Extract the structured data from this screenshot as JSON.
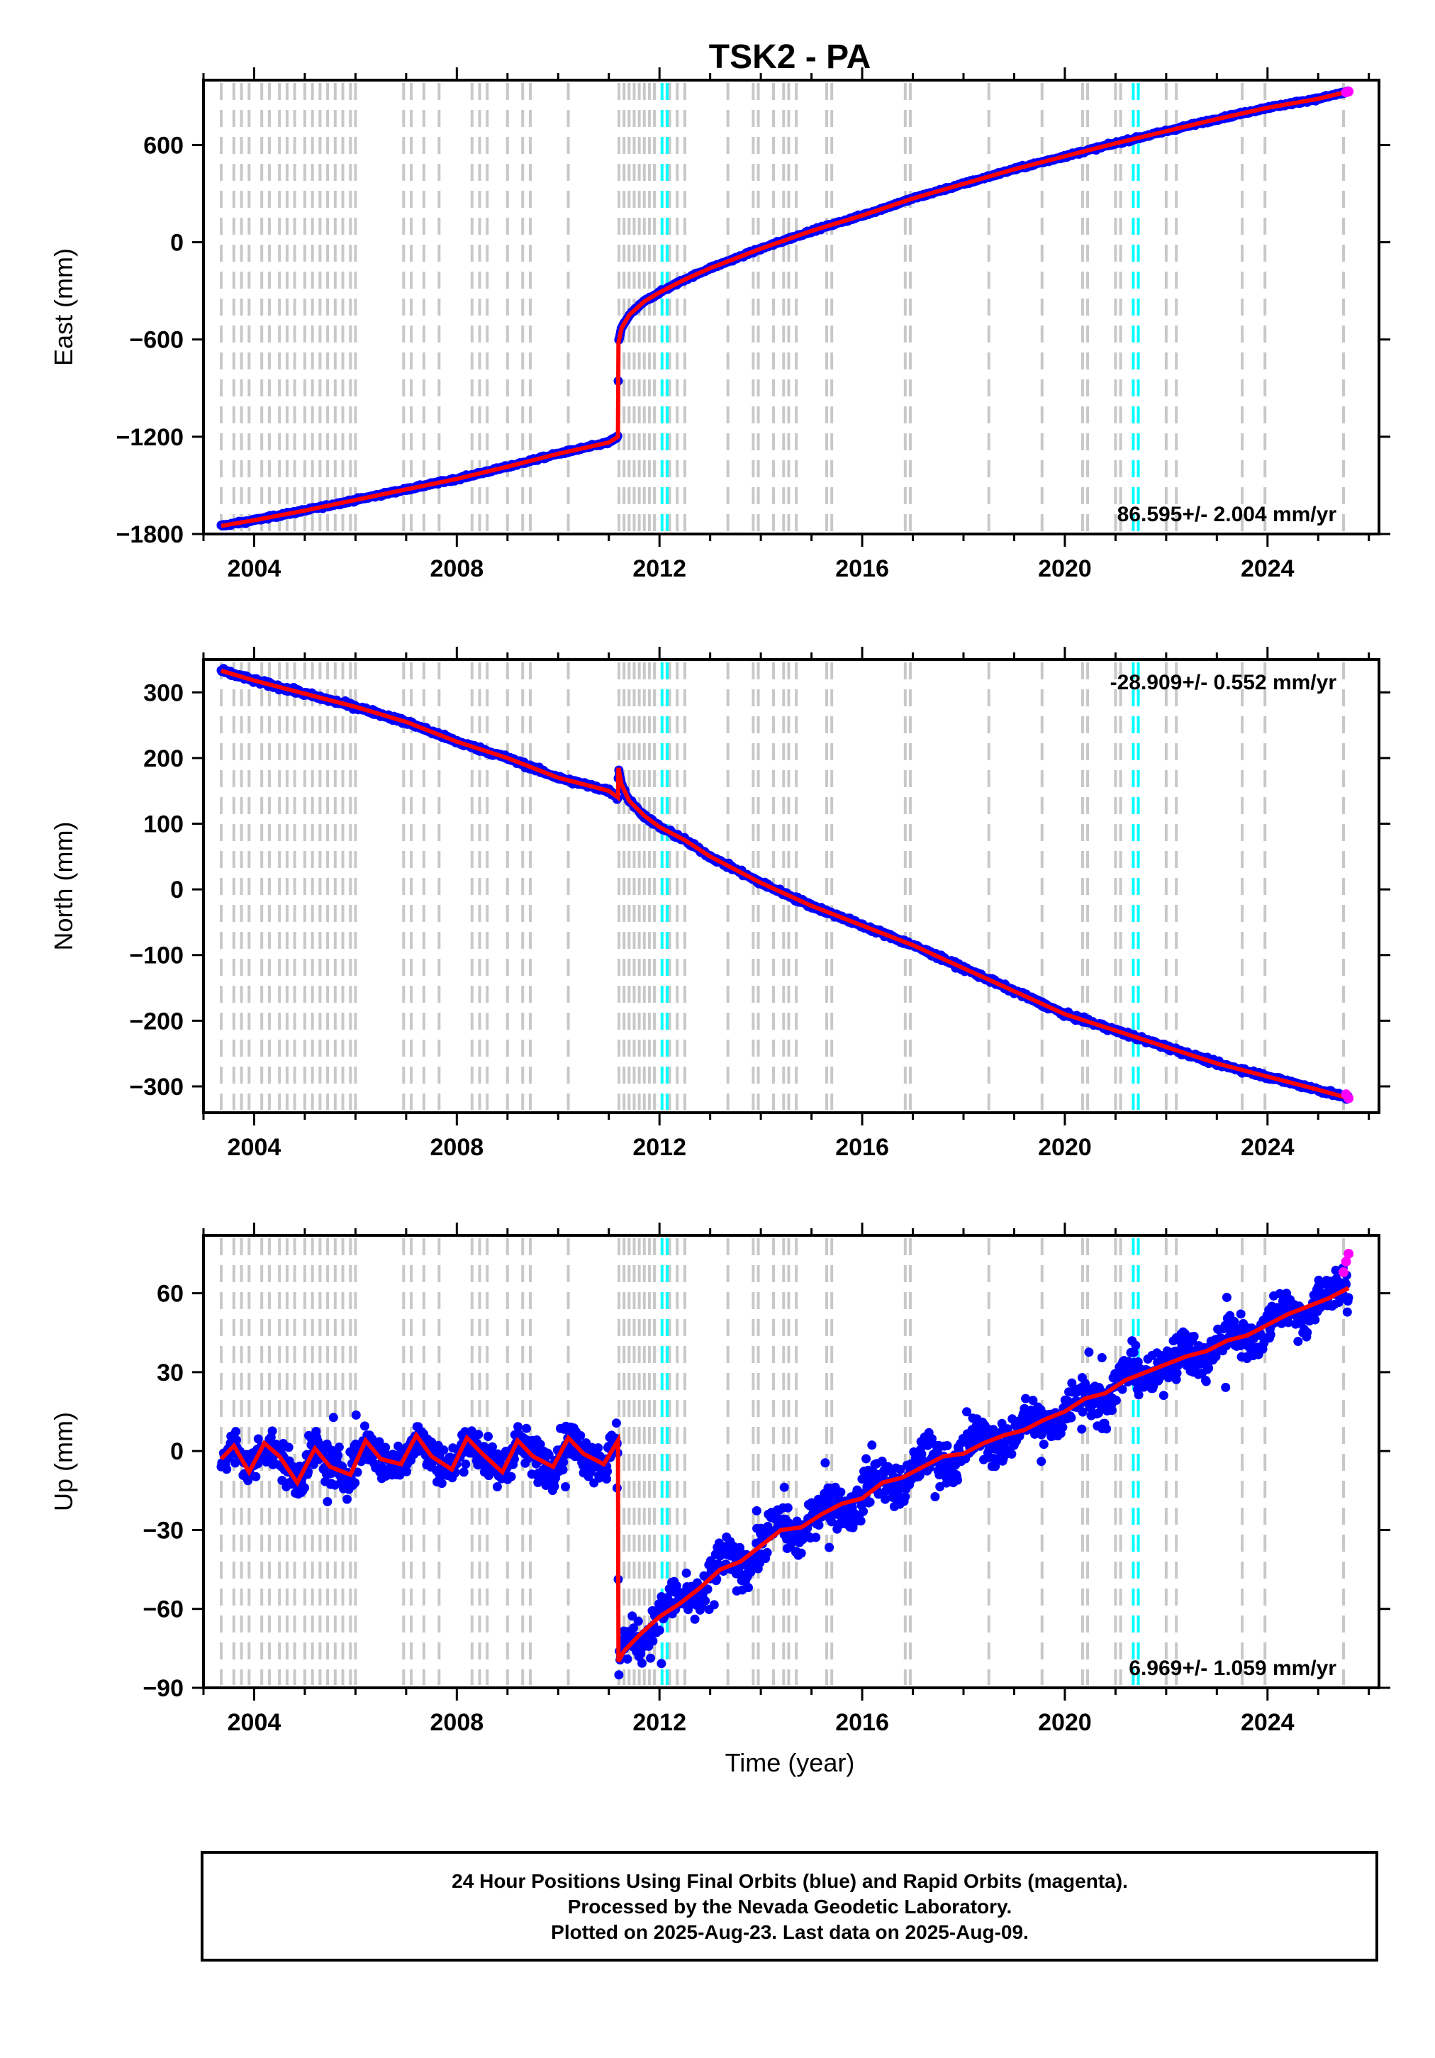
{
  "title": "TSK2 - PA",
  "x_axis_title": "Time (year)",
  "footer": {
    "lines": [
      "24 Hour Positions Using Final Orbits (blue) and Rapid Orbits (magenta).",
      "Processed by the Nevada Geodetic Laboratory.",
      "Plotted on 2025-Aug-23. Last data on 2025-Aug-09."
    ]
  },
  "colors": {
    "final_orbits": "#0000ff",
    "rapid_orbits": "#ff00ff",
    "model": "#ff0000",
    "event_line": "#c8c8c8",
    "antenna_change": "#00ffff"
  },
  "chart_data": [
    {
      "type": "scatter",
      "component": "East",
      "ylabel": "East (mm)",
      "ylim": [
        -1800,
        1000
      ],
      "yticks": [
        -1800,
        -1200,
        -600,
        0,
        600
      ],
      "xlim": [
        2003.0,
        2026.2
      ],
      "xticks": [
        2004,
        2008,
        2012,
        2016,
        2020,
        2024
      ],
      "rate_label": "86.595+/- 2.004 mm/yr",
      "rate_position": "bottom-right",
      "series": [
        {
          "x": [
            2003.35,
            2004.0,
            2005.0,
            2006.0,
            2007.0,
            2008.0,
            2009.0,
            2010.0,
            2011.0,
            2011.18,
            2011.19,
            2011.25,
            2011.4,
            2011.7,
            2012.0,
            2012.5,
            2013.0,
            2014.0,
            2015.0,
            2016.0,
            2017.0,
            2018.0,
            2019.0,
            2020.0,
            2021.0,
            2022.0,
            2023.0,
            2024.0,
            2025.0,
            2025.6
          ],
          "y": [
            -1750,
            -1715,
            -1655,
            -1590,
            -1525,
            -1460,
            -1385,
            -1305,
            -1235,
            -1200,
            -620,
            -530,
            -450,
            -365,
            -310,
            -230,
            -160,
            -40,
            70,
            165,
            270,
            360,
            450,
            530,
            610,
            685,
            760,
            830,
            885,
            930
          ]
        }
      ],
      "rapid_points": {
        "x": [
          2025.55,
          2025.6
        ],
        "y": [
          925,
          930
        ]
      }
    },
    {
      "type": "scatter",
      "component": "North",
      "ylabel": "North (mm)",
      "ylim": [
        -340,
        350
      ],
      "yticks": [
        -300,
        -200,
        -100,
        0,
        100,
        200,
        300
      ],
      "xlim": [
        2003.0,
        2026.2
      ],
      "xticks": [
        2004,
        2008,
        2012,
        2016,
        2020,
        2024
      ],
      "rate_label": "-28.909+/- 0.552 mm/yr",
      "rate_position": "top-right",
      "series": [
        {
          "x": [
            2003.35,
            2004.0,
            2005.0,
            2006.0,
            2007.0,
            2008.0,
            2009.0,
            2010.0,
            2011.0,
            2011.18,
            2011.19,
            2011.25,
            2011.4,
            2011.7,
            2012.0,
            2012.5,
            2013.0,
            2014.0,
            2015.0,
            2016.0,
            2017.0,
            2018.0,
            2019.0,
            2020.0,
            2021.0,
            2022.0,
            2023.0,
            2024.0,
            2025.0,
            2025.6
          ],
          "y": [
            333,
            318,
            298,
            278,
            255,
            225,
            200,
            170,
            150,
            140,
            185,
            160,
            135,
            112,
            95,
            75,
            50,
            10,
            -25,
            -55,
            -85,
            -120,
            -155,
            -190,
            -215,
            -240,
            -265,
            -285,
            -305,
            -318
          ]
        }
      ],
      "rapid_points": {
        "x": [
          2025.55,
          2025.6
        ],
        "y": [
          -312,
          -318
        ]
      }
    },
    {
      "type": "scatter",
      "component": "Up",
      "ylabel": "Up (mm)",
      "ylim": [
        -90,
        82
      ],
      "yticks": [
        -90,
        -60,
        -30,
        0,
        30,
        60
      ],
      "xlim": [
        2003.0,
        2026.2
      ],
      "xticks": [
        2004,
        2008,
        2012,
        2016,
        2020,
        2024
      ],
      "rate_label": "6.969+/- 1.059 mm/yr",
      "rate_position": "bottom-right",
      "series": [
        {
          "x": [
            2003.35,
            2003.6,
            2003.9,
            2004.2,
            2004.5,
            2004.85,
            2005.2,
            2005.5,
            2005.9,
            2006.2,
            2006.5,
            2006.9,
            2007.2,
            2007.5,
            2007.9,
            2008.2,
            2008.5,
            2008.9,
            2009.2,
            2009.5,
            2009.9,
            2010.2,
            2010.5,
            2010.9,
            2011.18,
            2011.19,
            2011.3,
            2011.6,
            2012.0,
            2012.4,
            2012.8,
            2013.2,
            2013.6,
            2014.0,
            2014.4,
            2014.8,
            2015.2,
            2015.6,
            2016.0,
            2016.4,
            2016.8,
            2017.2,
            2017.6,
            2018.0,
            2018.4,
            2018.8,
            2019.2,
            2019.6,
            2020.0,
            2020.4,
            2020.8,
            2021.2,
            2021.6,
            2022.0,
            2022.4,
            2022.8,
            2023.2,
            2023.6,
            2024.0,
            2024.4,
            2024.8,
            2025.2,
            2025.6
          ],
          "y": [
            -3,
            2,
            -8,
            3,
            -2,
            -12,
            1,
            -6,
            -9,
            4,
            -3,
            -5,
            6,
            -2,
            -7,
            5,
            -1,
            -8,
            4,
            -2,
            -6,
            5,
            -1,
            -5,
            4,
            -80,
            -76,
            -70,
            -63,
            -58,
            -52,
            -45,
            -42,
            -36,
            -30,
            -29,
            -24,
            -20,
            -18,
            -12,
            -10,
            -6,
            -2,
            -1,
            3,
            6,
            8,
            12,
            15,
            20,
            22,
            27,
            30,
            33,
            36,
            38,
            42,
            44,
            48,
            52,
            55,
            58,
            62
          ]
        }
      ],
      "rapid_points": {
        "x": [
          2025.5,
          2025.55,
          2025.6
        ],
        "y": [
          68,
          72,
          75
        ]
      }
    }
  ],
  "event_lines": [
    2003.35,
    2003.6,
    2003.75,
    2003.9,
    2004.15,
    2004.3,
    2004.5,
    2004.65,
    2004.8,
    2005.0,
    2005.15,
    2005.3,
    2005.45,
    2005.6,
    2005.75,
    2005.9,
    2006.0,
    2006.95,
    2007.1,
    2007.35,
    2007.65,
    2008.3,
    2008.45,
    2008.6,
    2009.0,
    2009.3,
    2009.45,
    2010.2,
    2011.2,
    2011.3,
    2011.4,
    2011.5,
    2011.6,
    2011.7,
    2011.8,
    2011.9,
    2012.2,
    2012.35,
    2012.5,
    2013.35,
    2013.85,
    2013.95,
    2014.25,
    2014.45,
    2014.55,
    2014.7,
    2015.3,
    2015.4,
    2016.85,
    2016.95,
    2018.5,
    2019.55,
    2020.35,
    2020.45,
    2021.0,
    2021.1,
    2022.0,
    2022.2,
    2023.5,
    2023.95,
    2025.5
  ],
  "antenna_lines": [
    2012.05,
    2012.15,
    2021.35,
    2021.45
  ]
}
